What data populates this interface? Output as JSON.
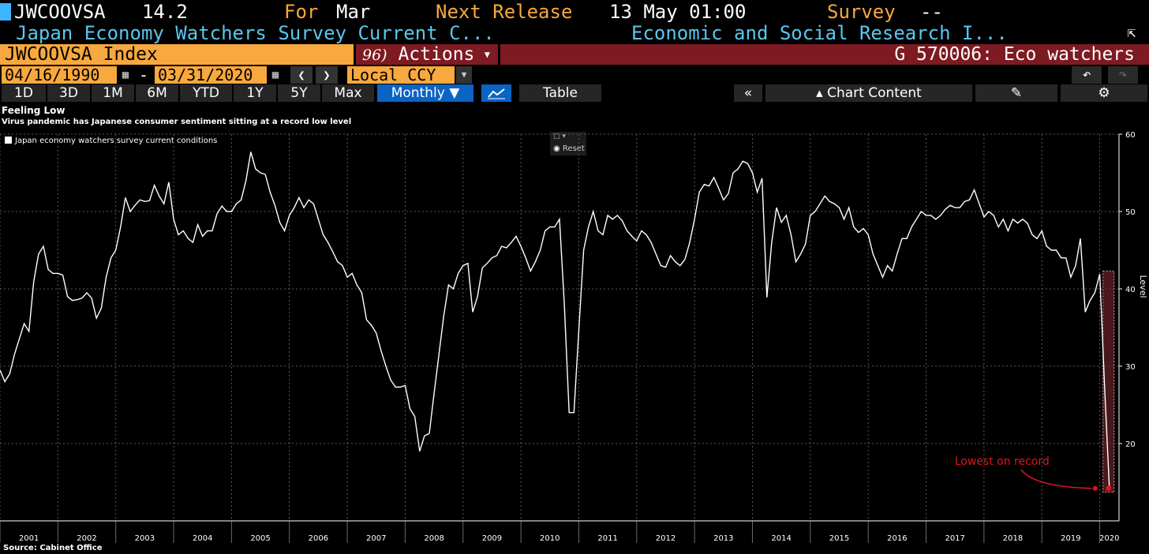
{
  "header": {
    "ticker": "JWCOOVSA",
    "last_value": "14.2",
    "for_label": "For",
    "for_value": "Mar",
    "next_release_label": "Next Release",
    "next_release_value": "13 May 01:00",
    "survey_label": "Survey",
    "survey_value": "--",
    "description": "Japan Economy Watchers Survey Current C...",
    "source_org": "Economic and Social Research I...",
    "security": "JWCOOVSA Index",
    "actions_number": "96)",
    "actions_label": "Actions",
    "group_label": "G 570006: Eco watchers"
  },
  "date_range": {
    "start": "04/16/1990",
    "separator": "-",
    "end": "03/31/2020",
    "currency": "Local CCY"
  },
  "toolbar": {
    "periods": [
      "1D",
      "3D",
      "1M",
      "6M",
      "YTD",
      "1Y",
      "5Y",
      "Max"
    ],
    "frequency": "Monthly",
    "table_label": "Table",
    "chart_content_label": "Chart Content"
  },
  "reset_label": "Reset",
  "source": "Source: Cabinet Office",
  "colors": {
    "orange": "#f7a83e",
    "cyan": "#59c7ee",
    "maroon": "#7d1a22",
    "active_blue": "#0b63c4",
    "annotation_red": "#e0141e"
  },
  "chart_data": {
    "type": "line",
    "title": "Feeling Low",
    "subtitle": "Virus pandemic has Japanese consumer sentiment sitting at a record low level",
    "ylabel": "Level",
    "legend": [
      "Japan economy watchers survey current conditions"
    ],
    "ylim": [
      10,
      60
    ],
    "yticks": [
      20,
      30,
      40,
      50,
      60
    ],
    "xticks": [
      "2001",
      "2002",
      "2003",
      "2004",
      "2005",
      "2006",
      "2007",
      "2008",
      "2009",
      "2010",
      "2011",
      "2012",
      "2013",
      "2014",
      "2015",
      "2016",
      "2017",
      "2018",
      "2019",
      "2020"
    ],
    "annotation": "Lowest on record",
    "series": [
      {
        "name": "Japan economy watchers survey current conditions",
        "x": [
          "2001-01",
          "2001-02",
          "2001-03",
          "2001-04",
          "2001-05",
          "2001-06",
          "2001-07",
          "2001-08",
          "2001-09",
          "2001-10",
          "2001-11",
          "2001-12",
          "2002-01",
          "2002-02",
          "2002-03",
          "2002-04",
          "2002-05",
          "2002-06",
          "2002-07",
          "2002-08",
          "2002-09",
          "2002-10",
          "2002-11",
          "2002-12",
          "2003-01",
          "2003-02",
          "2003-03",
          "2003-04",
          "2003-05",
          "2003-06",
          "2003-07",
          "2003-08",
          "2003-09",
          "2003-10",
          "2003-11",
          "2003-12",
          "2004-01",
          "2004-02",
          "2004-03",
          "2004-04",
          "2004-05",
          "2004-06",
          "2004-07",
          "2004-08",
          "2004-09",
          "2004-10",
          "2004-11",
          "2004-12",
          "2005-01",
          "2005-02",
          "2005-03",
          "2005-04",
          "2005-05",
          "2005-06",
          "2005-07",
          "2005-08",
          "2005-09",
          "2005-10",
          "2005-11",
          "2005-12",
          "2006-01",
          "2006-02",
          "2006-03",
          "2006-04",
          "2006-05",
          "2006-06",
          "2006-07",
          "2006-08",
          "2006-09",
          "2006-10",
          "2006-11",
          "2006-12",
          "2007-01",
          "2007-02",
          "2007-03",
          "2007-04",
          "2007-05",
          "2007-06",
          "2007-07",
          "2007-08",
          "2007-09",
          "2007-10",
          "2007-11",
          "2007-12",
          "2008-01",
          "2008-02",
          "2008-03",
          "2008-04",
          "2008-05",
          "2008-06",
          "2008-07",
          "2008-08",
          "2008-09",
          "2008-10",
          "2008-11",
          "2008-12",
          "2009-01",
          "2009-02",
          "2009-03",
          "2009-04",
          "2009-05",
          "2009-06",
          "2009-07",
          "2009-08",
          "2009-09",
          "2009-10",
          "2009-11",
          "2009-12",
          "2010-01",
          "2010-02",
          "2010-03",
          "2010-04",
          "2010-05",
          "2010-06",
          "2010-07",
          "2010-08",
          "2010-09",
          "2010-10",
          "2010-11",
          "2010-12",
          "2011-01",
          "2011-02",
          "2011-03",
          "2011-04",
          "2011-05",
          "2011-06",
          "2011-07",
          "2011-08",
          "2011-09",
          "2011-10",
          "2011-11",
          "2011-12",
          "2012-01",
          "2012-02",
          "2012-03",
          "2012-04",
          "2012-05",
          "2012-06",
          "2012-07",
          "2012-08",
          "2012-09",
          "2012-10",
          "2012-11",
          "2012-12",
          "2013-01",
          "2013-02",
          "2013-03",
          "2013-04",
          "2013-05",
          "2013-06",
          "2013-07",
          "2013-08",
          "2013-09",
          "2013-10",
          "2013-11",
          "2013-12",
          "2014-01",
          "2014-02",
          "2014-03",
          "2014-04",
          "2014-05",
          "2014-06",
          "2014-07",
          "2014-08",
          "2014-09",
          "2014-10",
          "2014-11",
          "2014-12",
          "2015-01",
          "2015-02",
          "2015-03",
          "2015-04",
          "2015-05",
          "2015-06",
          "2015-07",
          "2015-08",
          "2015-09",
          "2015-10",
          "2015-11",
          "2015-12",
          "2016-01",
          "2016-02",
          "2016-03",
          "2016-04",
          "2016-05",
          "2016-06",
          "2016-07",
          "2016-08",
          "2016-09",
          "2016-10",
          "2016-11",
          "2016-12",
          "2017-01",
          "2017-02",
          "2017-03",
          "2017-04",
          "2017-05",
          "2017-06",
          "2017-07",
          "2017-08",
          "2017-09",
          "2017-10",
          "2017-11",
          "2017-12",
          "2018-01",
          "2018-02",
          "2018-03",
          "2018-04",
          "2018-05",
          "2018-06",
          "2018-07",
          "2018-08",
          "2018-09",
          "2018-10",
          "2018-11",
          "2018-12",
          "2019-01",
          "2019-02",
          "2019-03",
          "2019-04",
          "2019-05",
          "2019-06",
          "2019-07",
          "2019-08",
          "2019-09",
          "2019-10",
          "2019-11",
          "2019-12",
          "2020-01",
          "2020-02",
          "2020-03"
        ],
        "values": [
          29.5,
          28.0,
          29.0,
          31.5,
          33.5,
          35.5,
          34.5,
          41.0,
          44.5,
          45.5,
          42.5,
          42.0,
          42.0,
          41.8,
          39.0,
          38.5,
          38.6,
          38.8,
          39.5,
          38.8,
          36.2,
          37.5,
          41.5,
          44.0,
          45.0,
          48.0,
          51.8,
          50.0,
          50.8,
          51.5,
          51.3,
          51.4,
          53.4,
          52.0,
          51.0,
          53.8,
          49.0,
          47.0,
          47.5,
          46.5,
          46.0,
          48.3,
          46.8,
          47.5,
          47.5,
          49.7,
          50.7,
          50.0,
          50.0,
          51.0,
          51.5,
          54.0,
          57.7,
          55.5,
          55.0,
          54.8,
          52.5,
          50.8,
          48.6,
          47.5,
          49.5,
          50.5,
          51.8,
          50.5,
          51.5,
          51.0,
          49.0,
          47.0,
          46.0,
          44.8,
          43.5,
          43.0,
          41.5,
          42.0,
          40.5,
          39.5,
          36.0,
          35.3,
          34.3,
          32.0,
          30.0,
          28.2,
          27.3,
          27.3,
          27.5,
          24.5,
          23.5,
          19.0,
          21.0,
          21.3,
          26.5,
          31.5,
          36.5,
          40.5,
          40.0,
          42.0,
          43.0,
          43.3,
          37.0,
          39.0,
          42.7,
          43.3,
          44.0,
          44.3,
          45.5,
          45.3,
          46.0,
          46.8,
          45.5,
          44.0,
          42.3,
          43.5,
          45.0,
          47.5,
          48.0,
          48.0,
          49.0,
          38.0,
          24.0,
          24.0,
          34.5,
          45.0,
          48.0,
          50.0,
          47.5,
          47.0,
          49.5,
          49.0,
          49.5,
          48.8,
          47.5,
          46.8,
          46.2,
          47.5,
          47.0,
          46.0,
          44.5,
          43.0,
          42.8,
          44.3,
          43.5,
          43.0,
          43.8,
          46.0,
          49.0,
          52.5,
          53.5,
          53.3,
          54.4,
          53.0,
          51.5,
          52.3,
          55.0,
          55.5,
          56.5,
          56.2,
          55.0,
          52.5,
          54.3,
          38.9,
          46.0,
          50.5,
          48.6,
          49.5,
          47.0,
          43.5,
          44.5,
          45.8,
          49.5,
          50.0,
          51.0,
          52.0,
          51.3,
          51.0,
          50.5,
          49.0,
          50.5,
          48.0,
          47.3,
          47.8,
          47.0,
          44.5,
          43.0,
          41.5,
          43.0,
          42.3,
          44.5,
          46.5,
          46.5,
          48.0,
          49.0,
          50.0,
          49.5,
          49.5,
          49.0,
          49.5,
          50.3,
          50.8,
          50.5,
          50.5,
          51.3,
          51.5,
          52.8,
          51.0,
          49.3,
          50.0,
          49.5,
          48.0,
          49.0,
          47.5,
          49.0,
          48.5,
          49.0,
          48.5,
          47.0,
          46.5,
          47.5,
          45.5,
          45.0,
          45.0,
          44.0,
          44.0,
          41.5,
          43.0,
          46.5,
          37.0,
          38.5,
          39.5,
          41.9,
          27.4,
          14.2
        ]
      }
    ]
  }
}
